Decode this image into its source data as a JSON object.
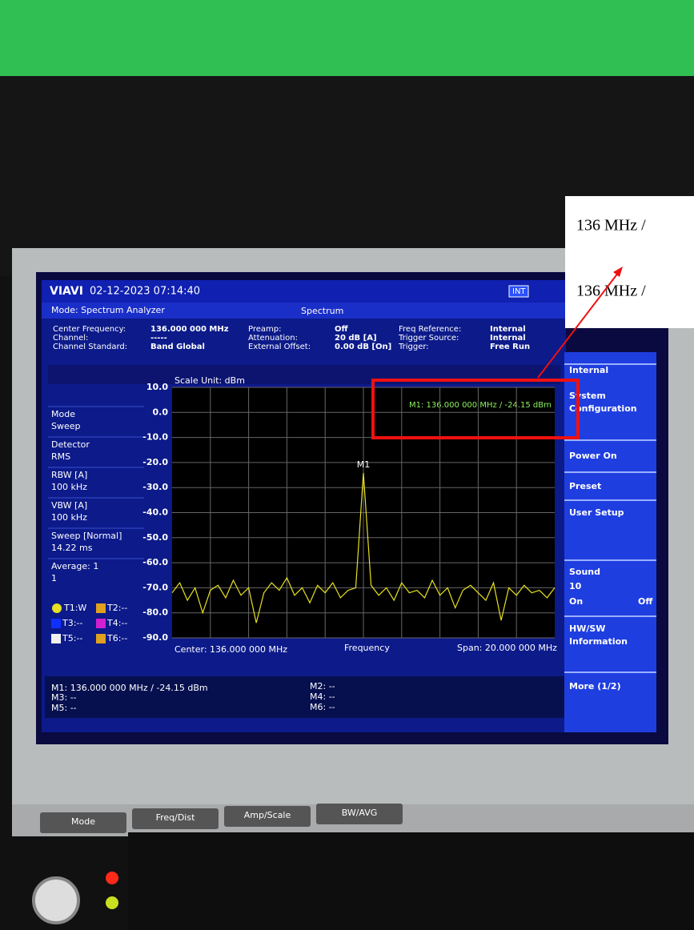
{
  "overlay": {
    "line1": "136 MHz /",
    "line2": "136 MHz /"
  },
  "header": {
    "brand": "VIAVI",
    "datetime": "02-12-2023  07:14:40",
    "ref": "INT",
    "mode": "Mode: Spectrum Analyzer",
    "view": "Spectrum"
  },
  "settings": [
    [
      "Center Frequency:",
      "136.000 000 MHz"
    ],
    [
      "Channel:",
      "-----"
    ],
    [
      "Channel Standard:",
      "Band Global"
    ],
    [
      "Preamp:",
      "Off"
    ],
    [
      "Attenuation:",
      "20 dB [A]"
    ],
    [
      "External Offset:",
      "0.00 dB [On]"
    ],
    [
      "Freq Reference:",
      "Internal"
    ],
    [
      "Trigger Source:",
      "Internal"
    ],
    [
      "Trigger:",
      "Free Run"
    ]
  ],
  "side_params": [
    [
      "Mode",
      "Sweep"
    ],
    [
      "Detector",
      "RMS"
    ],
    [
      "RBW [A]",
      "100 kHz"
    ],
    [
      "VBW [A]",
      "100 kHz"
    ],
    [
      "Sweep [Normal]",
      "14.22 ms"
    ],
    [
      "Average: 1",
      "1"
    ]
  ],
  "traces": [
    {
      "label": "T2:--",
      "color": "#e0a020"
    },
    {
      "label": "T3:--",
      "color": "#1030ff"
    },
    {
      "label": "T4:--",
      "color": "#d020d0"
    },
    {
      "label": "T5:--",
      "color": "#f0f0f0"
    },
    {
      "label": "T6:--",
      "color": "#e0a020"
    }
  ],
  "menu": [
    "Internal",
    "System",
    "Configuration",
    "Power On",
    "Preset",
    "User Setup",
    "Sound",
    "10",
    "On",
    "Off",
    "HW/SW",
    "Information",
    "More (1/2)"
  ],
  "markers_table": [
    "M1: 136.000 000 MHz / -24.15 dBm",
    "M3: --",
    "M5: --",
    "M2: --",
    "M4: --",
    "M6: --"
  ],
  "keys": [
    "Mode",
    "Freq/Dist",
    "Amp/Scale",
    "BW/AVG"
  ],
  "chart_data": {
    "type": "line",
    "subtitle": "Scale Unit: dBm",
    "marker_readout": "M1: 136.000 000 MHz / -24.15 dBm",
    "marker_label": "M1",
    "x_label": "Frequency",
    "center_label": "Center: 136.000 000 MHz",
    "span_label": "Span: 20.000 000 MHz",
    "xlim": [
      126,
      146
    ],
    "ylim": [
      -90,
      10
    ],
    "yticks": [
      {
        "value": 10,
        "label": "10.0"
      },
      {
        "value": 0,
        "label": "0.0"
      },
      {
        "value": -10,
        "label": "-10.0"
      },
      {
        "value": -20,
        "label": "-20.0"
      },
      {
        "value": -30,
        "label": "-30.0"
      },
      {
        "value": -40,
        "label": "-40.0"
      },
      {
        "value": -50,
        "label": "-50.0"
      },
      {
        "value": -60,
        "label": "-60.0"
      },
      {
        "value": -70,
        "label": "-70.0"
      },
      {
        "value": -80,
        "label": "-80.0"
      },
      {
        "value": -90,
        "label": "-90.0"
      }
    ],
    "grid": true,
    "x": [
      126,
      126.4,
      126.8,
      127.2,
      127.6,
      128,
      128.4,
      128.8,
      129.2,
      129.6,
      130,
      130.4,
      130.8,
      131.2,
      131.6,
      132,
      132.4,
      132.8,
      133.2,
      133.6,
      134,
      134.4,
      134.8,
      135.2,
      135.6,
      136,
      136.4,
      136.8,
      137.2,
      137.6,
      138,
      138.4,
      138.8,
      139.2,
      139.6,
      140,
      140.4,
      140.8,
      141.2,
      141.6,
      142,
      142.4,
      142.8,
      143.2,
      143.6,
      144,
      144.4,
      144.8,
      145.2,
      145.6,
      146
    ],
    "series": [
      {
        "name": "T1:W",
        "color": "#e8e020",
        "values": [
          -72,
          -68,
          -75,
          -70,
          -80,
          -71,
          -69,
          -74,
          -67,
          -73,
          -70,
          -84,
          -72,
          -68,
          -71,
          -66,
          -73,
          -70,
          -76,
          -69,
          -72,
          -68,
          -74,
          -71,
          -70,
          -24.15,
          -69,
          -73,
          -70,
          -75,
          -68,
          -72,
          -71,
          -74,
          -67,
          -73,
          -70,
          -78,
          -71,
          -69,
          -72,
          -75,
          -68,
          -83,
          -70,
          -73,
          -69,
          -72,
          -71,
          -74,
          -70
        ]
      }
    ]
  }
}
